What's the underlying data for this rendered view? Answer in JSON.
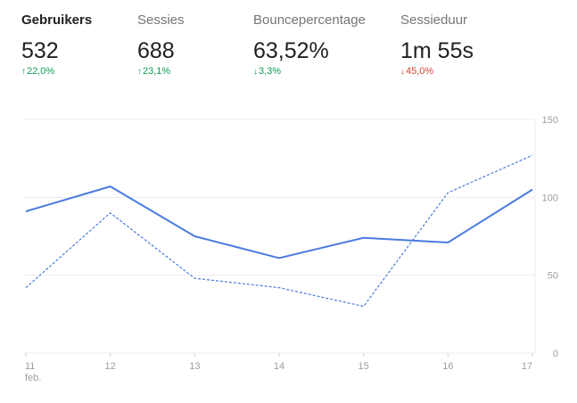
{
  "metrics": [
    {
      "label": "Gebruikers",
      "value": "532",
      "arrow": "↑",
      "change": "22,0%",
      "status_color": "#0f9d58"
    },
    {
      "label": "Sessies",
      "value": "688",
      "arrow": "↑",
      "change": "23,1%",
      "status_color": "#0f9d58"
    },
    {
      "label": "Bouncepercentage",
      "value": "63,52%",
      "arrow": "↓",
      "change": "3,3%",
      "status_color": "#0f9d58"
    },
    {
      "label": "Sessieduur",
      "value": "1m 55s",
      "arrow": "↓",
      "change": "45,0%",
      "status_color": "#db4437"
    }
  ],
  "chart_data": {
    "type": "line",
    "x": [
      "11",
      "12",
      "13",
      "14",
      "15",
      "16",
      "17"
    ],
    "x_sublabel": "feb.",
    "ylim": [
      0,
      150
    ],
    "yticks": [
      "0",
      "50",
      "100",
      "150"
    ],
    "y_axis_side": "right",
    "grid": true,
    "series": [
      {
        "values": [
          91,
          107,
          75,
          61,
          74,
          71,
          105
        ],
        "style": "solid",
        "color": "#4a7be0"
      },
      {
        "values": [
          42,
          90,
          48,
          42,
          30,
          103,
          127
        ],
        "style": "dashed",
        "color": "#4a7be0"
      }
    ]
  }
}
